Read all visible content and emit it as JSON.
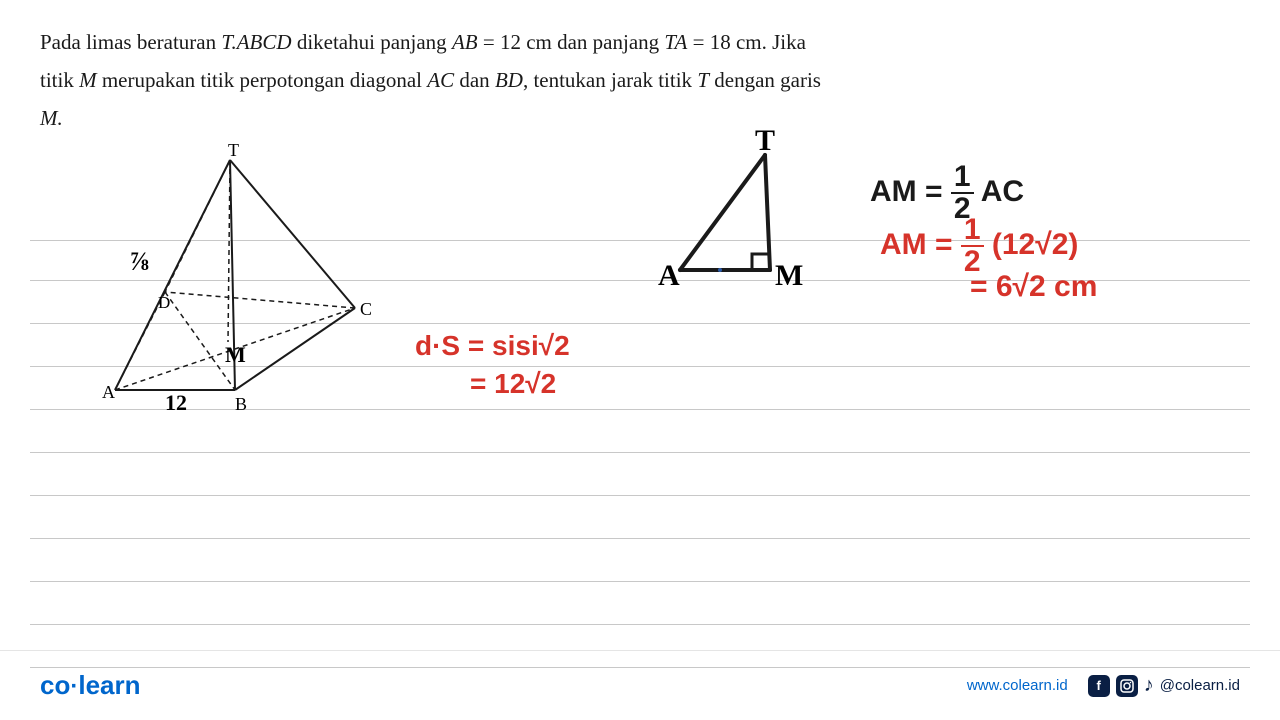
{
  "problem": {
    "line1_pre": "Pada limas beraturan ",
    "t_abcd": "T.ABCD",
    "line1_mid": " diketahui panjang ",
    "ab": "AB",
    "eq1": " = ",
    "val1": "12",
    "unit1": " cm dan panjang ",
    "ta": "TA",
    "eq2": " = ",
    "val2": "18",
    "unit2": " cm. Jika",
    "line2_pre": "titik ",
    "m1": "M",
    "line2_mid": " merupakan titik perpotongan diagonal ",
    "ac": "AC",
    "line2_and": " dan ",
    "bd": "BD",
    "line2_end": ", tentukan jarak titik ",
    "t": "T",
    "line2_suffix": " dengan garis",
    "m2": "M."
  },
  "pyramid": {
    "labels": {
      "T": "T",
      "A": "A",
      "B": "B",
      "C": "C",
      "D": "D",
      "M": "M",
      "ab_length": "12",
      "edge_annot": "⅞"
    },
    "colors": {
      "stroke": "#1a1a1a",
      "hand": "#1a1a1a"
    }
  },
  "triangle": {
    "labels": {
      "T": "T",
      "A": "A",
      "M": "M"
    }
  },
  "work": {
    "ds1": "d·S = sisi√2",
    "ds2": "= 12√2",
    "am1_lhs": "AM = ",
    "am1_frac_num": "1",
    "am1_frac_den": "2",
    "am1_rhs": " AC",
    "am2_lhs": "AM = ",
    "am2_frac_num": "1",
    "am2_frac_den": "2",
    "am2_rhs": " (12√2)",
    "am3": "= 6√2 cm"
  },
  "footer": {
    "logo_co": "co",
    "logo_learn": "learn",
    "website": "www.colearn.id",
    "handle": "@colearn.id"
  },
  "style": {
    "red": "#d6332a",
    "black": "#1a1a1a",
    "blue": "#0066cc",
    "navy": "#0a1f44",
    "line_color": "#c8c8c8"
  },
  "notebook": {
    "line_positions": [
      50,
      90,
      133,
      176,
      219,
      262,
      305,
      348,
      391,
      434,
      477
    ]
  }
}
